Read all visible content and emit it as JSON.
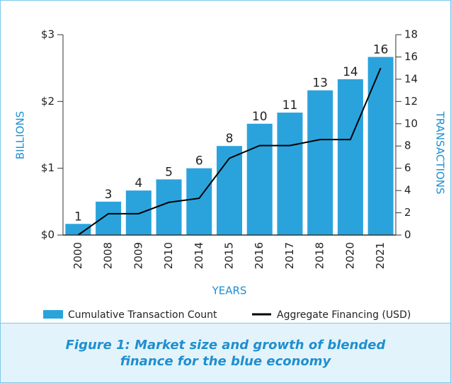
{
  "chart_data": {
    "type": "bar",
    "categories": [
      "2000",
      "2008",
      "2009",
      "2010",
      "2014",
      "2015",
      "2016",
      "2017",
      "2018",
      "2020",
      "2021"
    ],
    "series": [
      {
        "name": "Cumulative Transaction Count",
        "type": "bar",
        "color": "#2aa3dc",
        "axis": "y2",
        "values": [
          1,
          3,
          4,
          5,
          6,
          8,
          10,
          11,
          13,
          14,
          16
        ]
      },
      {
        "name": "Aggregate Financing (USD)",
        "type": "line",
        "color": "#000000",
        "values": [
          0,
          0.32,
          0.32,
          0.49,
          0.55,
          1.15,
          1.34,
          1.34,
          1.43,
          1.43,
          2.5
        ]
      }
    ],
    "ylim": [
      0,
      3
    ],
    "yticks": [
      {
        "value": 0,
        "label": "$0"
      },
      {
        "value": 1,
        "label": "$1"
      },
      {
        "value": 2,
        "label": "$2"
      },
      {
        "value": 3,
        "label": "$3"
      }
    ],
    "y2lim": [
      0,
      18
    ],
    "y2ticks": [
      0,
      2,
      4,
      6,
      8,
      10,
      12,
      14,
      16,
      18
    ],
    "ylabel": "BILLIONS",
    "y2label": "TRANSACTIONS",
    "xlabel": "YEARS",
    "caption": "Figure 1: Market size and growth of blended finance for the blue economy"
  }
}
